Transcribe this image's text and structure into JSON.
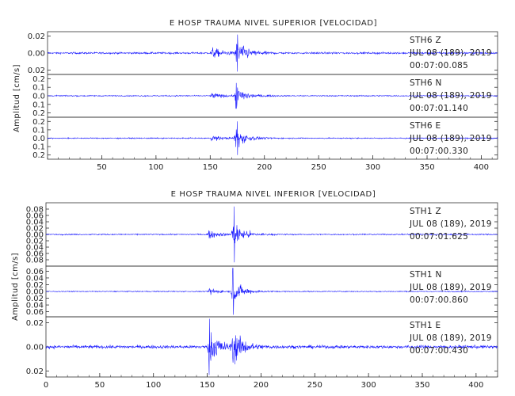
{
  "colors": {
    "trace": "#1414ff",
    "axis": "#333333",
    "text": "#222222",
    "background": "#ffffff"
  },
  "chart_data": [
    {
      "type": "line",
      "title": "E HOSP TRAUMA NIVEL SUPERIOR [VELOCIDAD]",
      "ylabel": "Amplitud [cm/s]",
      "xlim": [
        0,
        415
      ],
      "x_ticks": [
        "50",
        "100",
        "150",
        "200",
        "250",
        "300",
        "350",
        "400"
      ],
      "grid": false,
      "series": [
        {
          "name": "STH6 Z",
          "station": "STH6",
          "component": "Z",
          "date": "JUL 08 (189), 2019",
          "time": "00:07:00.085",
          "ylim": [
            -0.03,
            0.03
          ],
          "y_ticks": [
            "0.02",
            "0.00",
            "0.02"
          ],
          "noise": 0.0012,
          "events": [
            {
              "t": 150,
              "amp": 0.009
            },
            {
              "t": 172,
              "amp": 0.022
            }
          ],
          "spike": {
            "t": 175,
            "amp": 0.026
          }
        },
        {
          "name": "STH6 N",
          "station": "STH6",
          "component": "N",
          "date": "JUL 08 (189), 2019",
          "time": "00:07:01.140",
          "ylim": [
            -0.25,
            0.25
          ],
          "y_ticks": [
            "0.2",
            "0.1",
            "0.0",
            "0.1",
            "0.2"
          ],
          "noise": 0.006,
          "events": [
            {
              "t": 150,
              "amp": 0.04
            },
            {
              "t": 172,
              "amp": 0.13
            }
          ],
          "spike": {
            "t": 174,
            "amp": 0.15
          }
        },
        {
          "name": "STH6 E",
          "station": "STH6",
          "component": "E",
          "date": "JUL 08 (189), 2019",
          "time": "00:07:00.330",
          "ylim": [
            -0.25,
            0.25
          ],
          "y_ticks": [
            "0.2",
            "0.1",
            "0.0",
            "0.1",
            "0.2"
          ],
          "noise": 0.006,
          "events": [
            {
              "t": 150,
              "amp": 0.04
            },
            {
              "t": 172,
              "amp": 0.15
            }
          ],
          "spike": {
            "t": 175,
            "amp": 0.2
          }
        }
      ]
    },
    {
      "type": "line",
      "title": "E HOSP TRAUMA NIVEL INFERIOR [VELOCIDAD]",
      "ylabel": "Amplitud [cm/s]",
      "xlim": [
        0,
        420
      ],
      "x_ticks": [
        "0",
        "50",
        "100",
        "150",
        "200",
        "250",
        "300",
        "350",
        "400"
      ],
      "grid": false,
      "series": [
        {
          "name": "STH1 Z",
          "station": "STH1",
          "component": "Z",
          "date": "JUL 08 (189), 2019",
          "time": "00:07:01.625",
          "ylim": [
            -0.085,
            0.085
          ],
          "y_ticks": [
            "0.08",
            "0.06",
            "0.04",
            "0.02",
            "0.00",
            "0.02",
            "0.04",
            "0.06",
            "0.08"
          ],
          "noise": 0.0015,
          "events": [
            {
              "t": 150,
              "amp": 0.012
            },
            {
              "t": 172,
              "amp": 0.045
            }
          ],
          "spike": {
            "t": 175,
            "amp": 0.075
          }
        },
        {
          "name": "STH1 N",
          "station": "STH1",
          "component": "N",
          "date": "JUL 08 (189), 2019",
          "time": "00:07:00.860",
          "ylim": [
            -0.065,
            0.065
          ],
          "y_ticks": [
            "0.06",
            "0.04",
            "0.02",
            "0.00",
            "0.02",
            "0.04",
            "0.06"
          ],
          "noise": 0.0012,
          "events": [
            {
              "t": 150,
              "amp": 0.01
            },
            {
              "t": 172,
              "amp": 0.035
            }
          ],
          "spike": {
            "t": 174,
            "amp": 0.06
          }
        },
        {
          "name": "STH1 E",
          "station": "STH1",
          "component": "E",
          "date": "JUL 08 (189), 2019",
          "time": "00:07:00.430",
          "ylim": [
            -0.03,
            0.03
          ],
          "y_ticks": [
            "0.02",
            "0.00",
            "0.02"
          ],
          "noise": 0.0015,
          "events": [
            {
              "t": 150,
              "amp": 0.02
            },
            {
              "t": 172,
              "amp": 0.02
            }
          ],
          "spike": {
            "t": 152,
            "amp": 0.028
          }
        }
      ]
    }
  ]
}
